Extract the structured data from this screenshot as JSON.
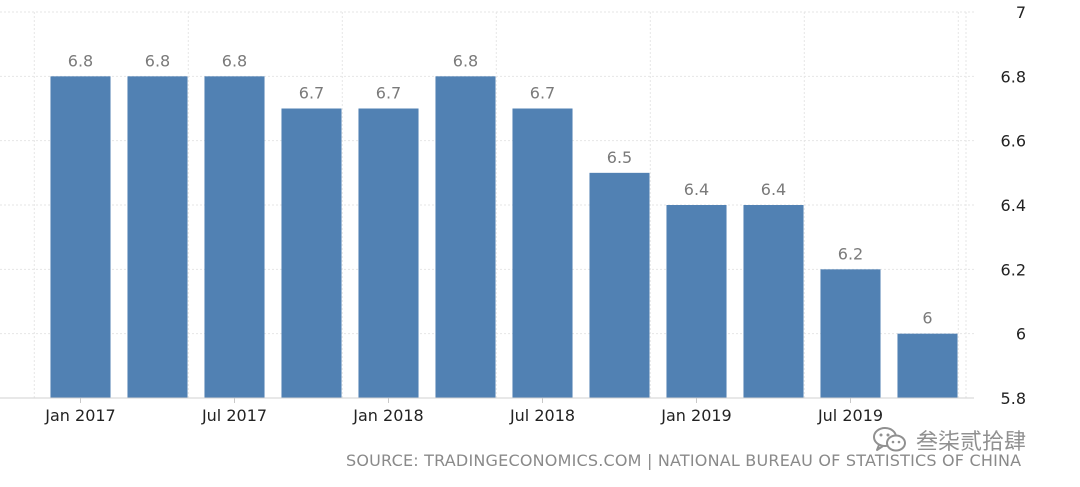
{
  "chart_data": {
    "type": "bar",
    "categories": [
      "2017Q1",
      "2017Q2",
      "2017Q3",
      "2017Q4",
      "2018Q1",
      "2018Q2",
      "2018Q3",
      "2018Q4",
      "2019Q1",
      "2019Q2",
      "2019Q3",
      "2019Q4"
    ],
    "values": [
      6.8,
      6.8,
      6.8,
      6.7,
      6.7,
      6.8,
      6.7,
      6.5,
      6.4,
      6.4,
      6.2,
      6.0
    ],
    "data_labels": [
      "6.8",
      "6.8",
      "6.8",
      "6.7",
      "6.7",
      "6.8",
      "6.7",
      "6.5",
      "6.4",
      "6.4",
      "6.2",
      "6"
    ],
    "x_tick_labels": [
      "Jan 2017",
      "Jul 2017",
      "Jan 2018",
      "Jul 2018",
      "Jan 2019",
      "Jul 2019"
    ],
    "x_tick_positions": [
      0,
      2,
      4,
      6,
      8,
      10
    ],
    "y_ticks": [
      "5.8",
      "6",
      "6.2",
      "6.4",
      "6.6",
      "6.8",
      "7"
    ],
    "ylim": [
      5.8,
      7
    ],
    "y_axis_side": "right",
    "grid": true,
    "bar_color": "#5181b3",
    "title": "",
    "xlabel": "",
    "ylabel": ""
  },
  "source_text": "SOURCE: TRADINGECONOMICS.COM | NATIONAL BUREAU OF STATISTICS OF CHINA",
  "watermark_text": "叁柒贰拾肆",
  "watermark_icon": "wechat-icon"
}
